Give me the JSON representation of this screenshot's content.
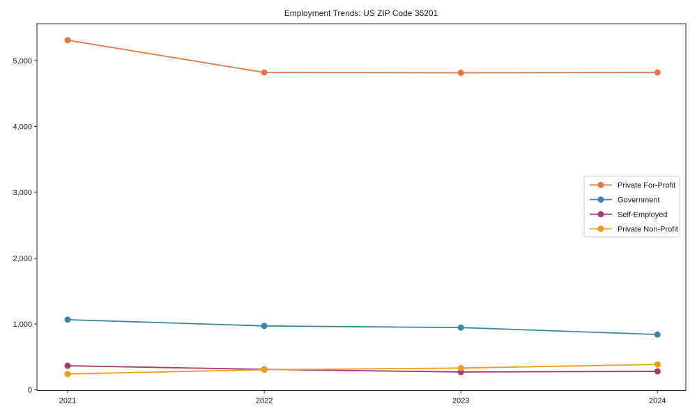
{
  "chart_data": {
    "type": "line",
    "title": "Employment Trends: US ZIP Code 36201",
    "xlabel": "",
    "ylabel": "",
    "x": [
      2021,
      2022,
      2023,
      2024
    ],
    "x_tick_labels": [
      "2021",
      "2022",
      "2023",
      "2024"
    ],
    "y_ticks": [
      0,
      1000,
      2000,
      3000,
      4000,
      5000
    ],
    "y_tick_labels": [
      "0",
      "1,000",
      "2,000",
      "3,000",
      "4,000",
      "5,000"
    ],
    "ylim": [
      0,
      5570
    ],
    "grid": false,
    "marker": "circle",
    "legend": {
      "visible": true,
      "position": "center-right",
      "background": "#ffffff",
      "border_color": "#cccccc"
    },
    "axis_color": "#262626",
    "series": [
      {
        "name": "Private For-Profit",
        "color": "#E47642",
        "values": [
          5310,
          4820,
          4815,
          4820
        ]
      },
      {
        "name": "Government",
        "color": "#3A87A5",
        "values": [
          1065,
          970,
          945,
          840
        ]
      },
      {
        "name": "Self-Employed",
        "color": "#A23B72",
        "values": [
          365,
          310,
          270,
          280
        ]
      },
      {
        "name": "Private Non-Profit",
        "color": "#EE9B1C",
        "values": [
          240,
          305,
          330,
          385
        ]
      }
    ]
  }
}
